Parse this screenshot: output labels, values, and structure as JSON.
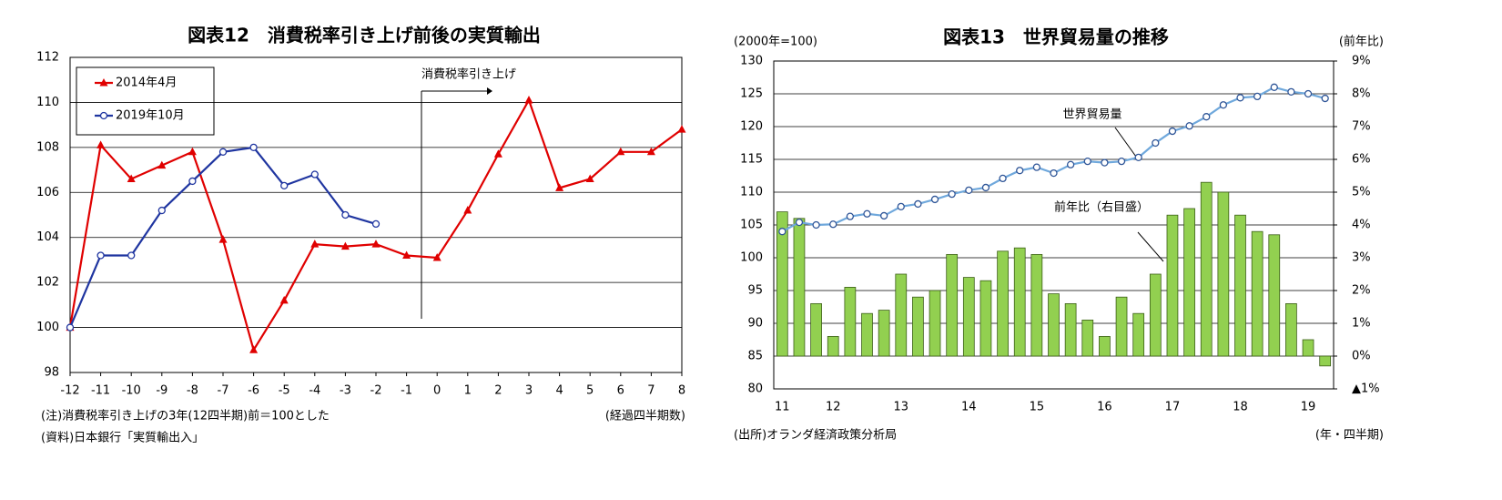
{
  "chart_data": [
    {
      "type": "line",
      "title": "図表12　消費税率引き上げ前後の実質輸出",
      "x": [
        -12,
        -11,
        -10,
        -9,
        -8,
        -7,
        -6,
        -5,
        -4,
        -3,
        -2,
        -1,
        0,
        1,
        2,
        3,
        4,
        5,
        6,
        7,
        8
      ],
      "xlim": [
        -12,
        8
      ],
      "xticks": [
        -12,
        -11,
        -10,
        -9,
        -8,
        -7,
        -6,
        -5,
        -4,
        -3,
        -2,
        -1,
        0,
        1,
        2,
        3,
        4,
        5,
        6,
        7,
        8
      ],
      "ylim": [
        98,
        112
      ],
      "yticks": [
        98,
        100,
        102,
        104,
        106,
        108,
        110,
        112
      ],
      "grid": true,
      "legend": "upper left",
      "series": [
        {
          "name": "2014年4月",
          "color": "#e00000",
          "marker": "triangle",
          "values": [
            100,
            108.1,
            106.6,
            107.2,
            107.8,
            103.9,
            99.0,
            101.2,
            103.7,
            103.6,
            103.7,
            103.2,
            103.1,
            105.2,
            107.7,
            110.1,
            106.2,
            106.6,
            107.8,
            107.8,
            108.8
          ]
        },
        {
          "name": "2019年10月",
          "color": "#1f35a0",
          "marker": "circle",
          "values": [
            100,
            103.2,
            103.2,
            105.2,
            106.5,
            107.8,
            108.0,
            106.3,
            106.8,
            105.0,
            104.6,
            null,
            null,
            null,
            null,
            null,
            null,
            null,
            null,
            null,
            null
          ]
        }
      ],
      "annotation": "消費税率引き上げ",
      "xlabel": "(経過四半期数)",
      "notes": [
        "(注)消費税率引き上げの3年(12四半期)前＝100とした",
        "(資料)日本銀行「実質輸出入」"
      ]
    },
    {
      "type": "bar_line",
      "title": "図表13　世界貿易量の推移",
      "categories": [
        "11",
        null,
        null,
        "12",
        null,
        null,
        null,
        "13",
        null,
        null,
        null,
        "14",
        null,
        null,
        null,
        "15",
        null,
        null,
        null,
        "16",
        null,
        null,
        null,
        "17",
        null,
        null,
        null,
        "18",
        null,
        null,
        null,
        "19",
        null
      ],
      "ylim": [
        80,
        130
      ],
      "yticks": [
        80,
        85,
        90,
        95,
        100,
        105,
        110,
        115,
        120,
        125,
        130
      ],
      "y2lim": [
        -1,
        9
      ],
      "y2ticks": [
        {
          "value": -1,
          "label": "▲1%"
        },
        {
          "value": 0,
          "label": "0%"
        },
        {
          "value": 1,
          "label": "1%"
        },
        {
          "value": 2,
          "label": "2%"
        },
        {
          "value": 3,
          "label": "3%"
        },
        {
          "value": 4,
          "label": "4%"
        },
        {
          "value": 5,
          "label": "5%"
        },
        {
          "value": 6,
          "label": "6%"
        },
        {
          "value": 7,
          "label": "7%"
        },
        {
          "value": 8,
          "label": "8%"
        },
        {
          "value": 9,
          "label": "9%"
        }
      ],
      "grid": true,
      "ylabel": "(2000年=100)",
      "y2label": "(前年比)",
      "xlabel": "(年・四半期)",
      "series": [
        {
          "name": "前年比（右目盛）",
          "type": "bar",
          "axis": "y2",
          "color": "#92d050",
          "values": [
            4.4,
            4.2,
            1.6,
            0.6,
            2.1,
            1.3,
            1.4,
            2.5,
            1.8,
            2.0,
            3.1,
            2.4,
            2.3,
            3.2,
            3.3,
            3.1,
            1.9,
            1.6,
            1.1,
            0.6,
            1.8,
            1.3,
            2.5,
            4.3,
            4.5,
            5.3,
            5.0,
            4.3,
            3.8,
            3.7,
            1.6,
            0.5,
            -0.3
          ]
        },
        {
          "name": "世界貿易量",
          "type": "line",
          "color": "#6fa8dc",
          "values": [
            104.0,
            105.4,
            105.0,
            105.1,
            106.3,
            106.7,
            106.4,
            107.8,
            108.2,
            108.9,
            109.7,
            110.3,
            110.7,
            112.1,
            113.3,
            113.8,
            112.9,
            114.2,
            114.7,
            114.5,
            114.7,
            115.3,
            117.5,
            119.3,
            120.1,
            121.5,
            123.3,
            124.4,
            124.6,
            126.0,
            125.3,
            125.0,
            124.3
          ]
        }
      ],
      "notes": [
        "(出所)オランダ経済政策分析局"
      ]
    }
  ]
}
